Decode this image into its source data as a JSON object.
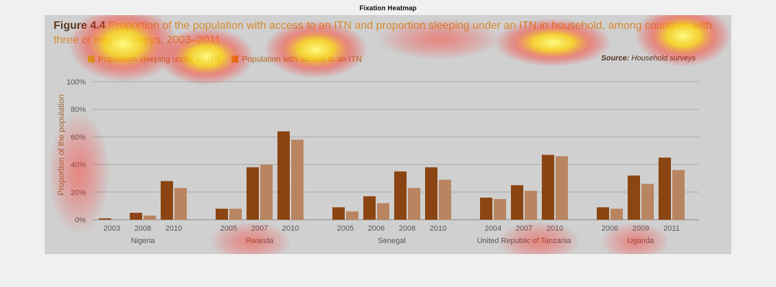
{
  "window_title": "Fixation Heatmap",
  "figure": {
    "label": "Figure 4.4",
    "title": "Proportion of the population with access to an ITN and proportion sleeping under an ITN in household, among countries with three or more surveys, 2003–2011",
    "source_label": "Source:",
    "source_value": "Household surveys"
  },
  "colors": {
    "sleeping": "#8b4513",
    "access": "#b98560",
    "legend_sleeping": "#c9c922",
    "legend_access": "#d68a10",
    "grid": "#a9a9a9",
    "axis_text": "#555555"
  },
  "chart_data": {
    "type": "bar",
    "ylabel": "Proportion of the population",
    "ylim": [
      0,
      100
    ],
    "yticks": [
      "0%",
      "20%",
      "40%",
      "60%",
      "80%",
      "100%"
    ],
    "ytick_values": [
      0,
      20,
      40,
      60,
      80,
      100
    ],
    "grid": true,
    "legend_placement": "top-left",
    "series": [
      {
        "name": "Population sleeping under an ITN",
        "key": "sleeping"
      },
      {
        "name": "Population with access to an ITN",
        "key": "access"
      }
    ],
    "groups": [
      {
        "country": "Nigeria",
        "years": [
          {
            "year": "2003",
            "sleeping": 1,
            "access": 0
          },
          {
            "year": "2008",
            "sleeping": 5,
            "access": 3
          },
          {
            "year": "2010",
            "sleeping": 28,
            "access": 23
          }
        ]
      },
      {
        "country": "Rwanda",
        "years": [
          {
            "year": "2005",
            "sleeping": 8,
            "access": 8
          },
          {
            "year": "2007",
            "sleeping": 38,
            "access": 40
          },
          {
            "year": "2010",
            "sleeping": 64,
            "access": 58
          }
        ]
      },
      {
        "country": "Senegal",
        "years": [
          {
            "year": "2005",
            "sleeping": 9,
            "access": 6
          },
          {
            "year": "2006",
            "sleeping": 17,
            "access": 12
          },
          {
            "year": "2008",
            "sleeping": 35,
            "access": 23
          },
          {
            "year": "2010",
            "sleeping": 38,
            "access": 29
          }
        ]
      },
      {
        "country": "United Republic of Tanzania",
        "years": [
          {
            "year": "2004",
            "sleeping": 16,
            "access": 15
          },
          {
            "year": "2007",
            "sleeping": 25,
            "access": 21
          },
          {
            "year": "2010",
            "sleeping": 47,
            "access": 46
          }
        ]
      },
      {
        "country": "Uganda",
        "years": [
          {
            "year": "2006",
            "sleeping": 9,
            "access": 8
          },
          {
            "year": "2009",
            "sleeping": 32,
            "access": 26
          },
          {
            "year": "2011",
            "sleeping": 45,
            "access": 36
          }
        ]
      }
    ]
  }
}
